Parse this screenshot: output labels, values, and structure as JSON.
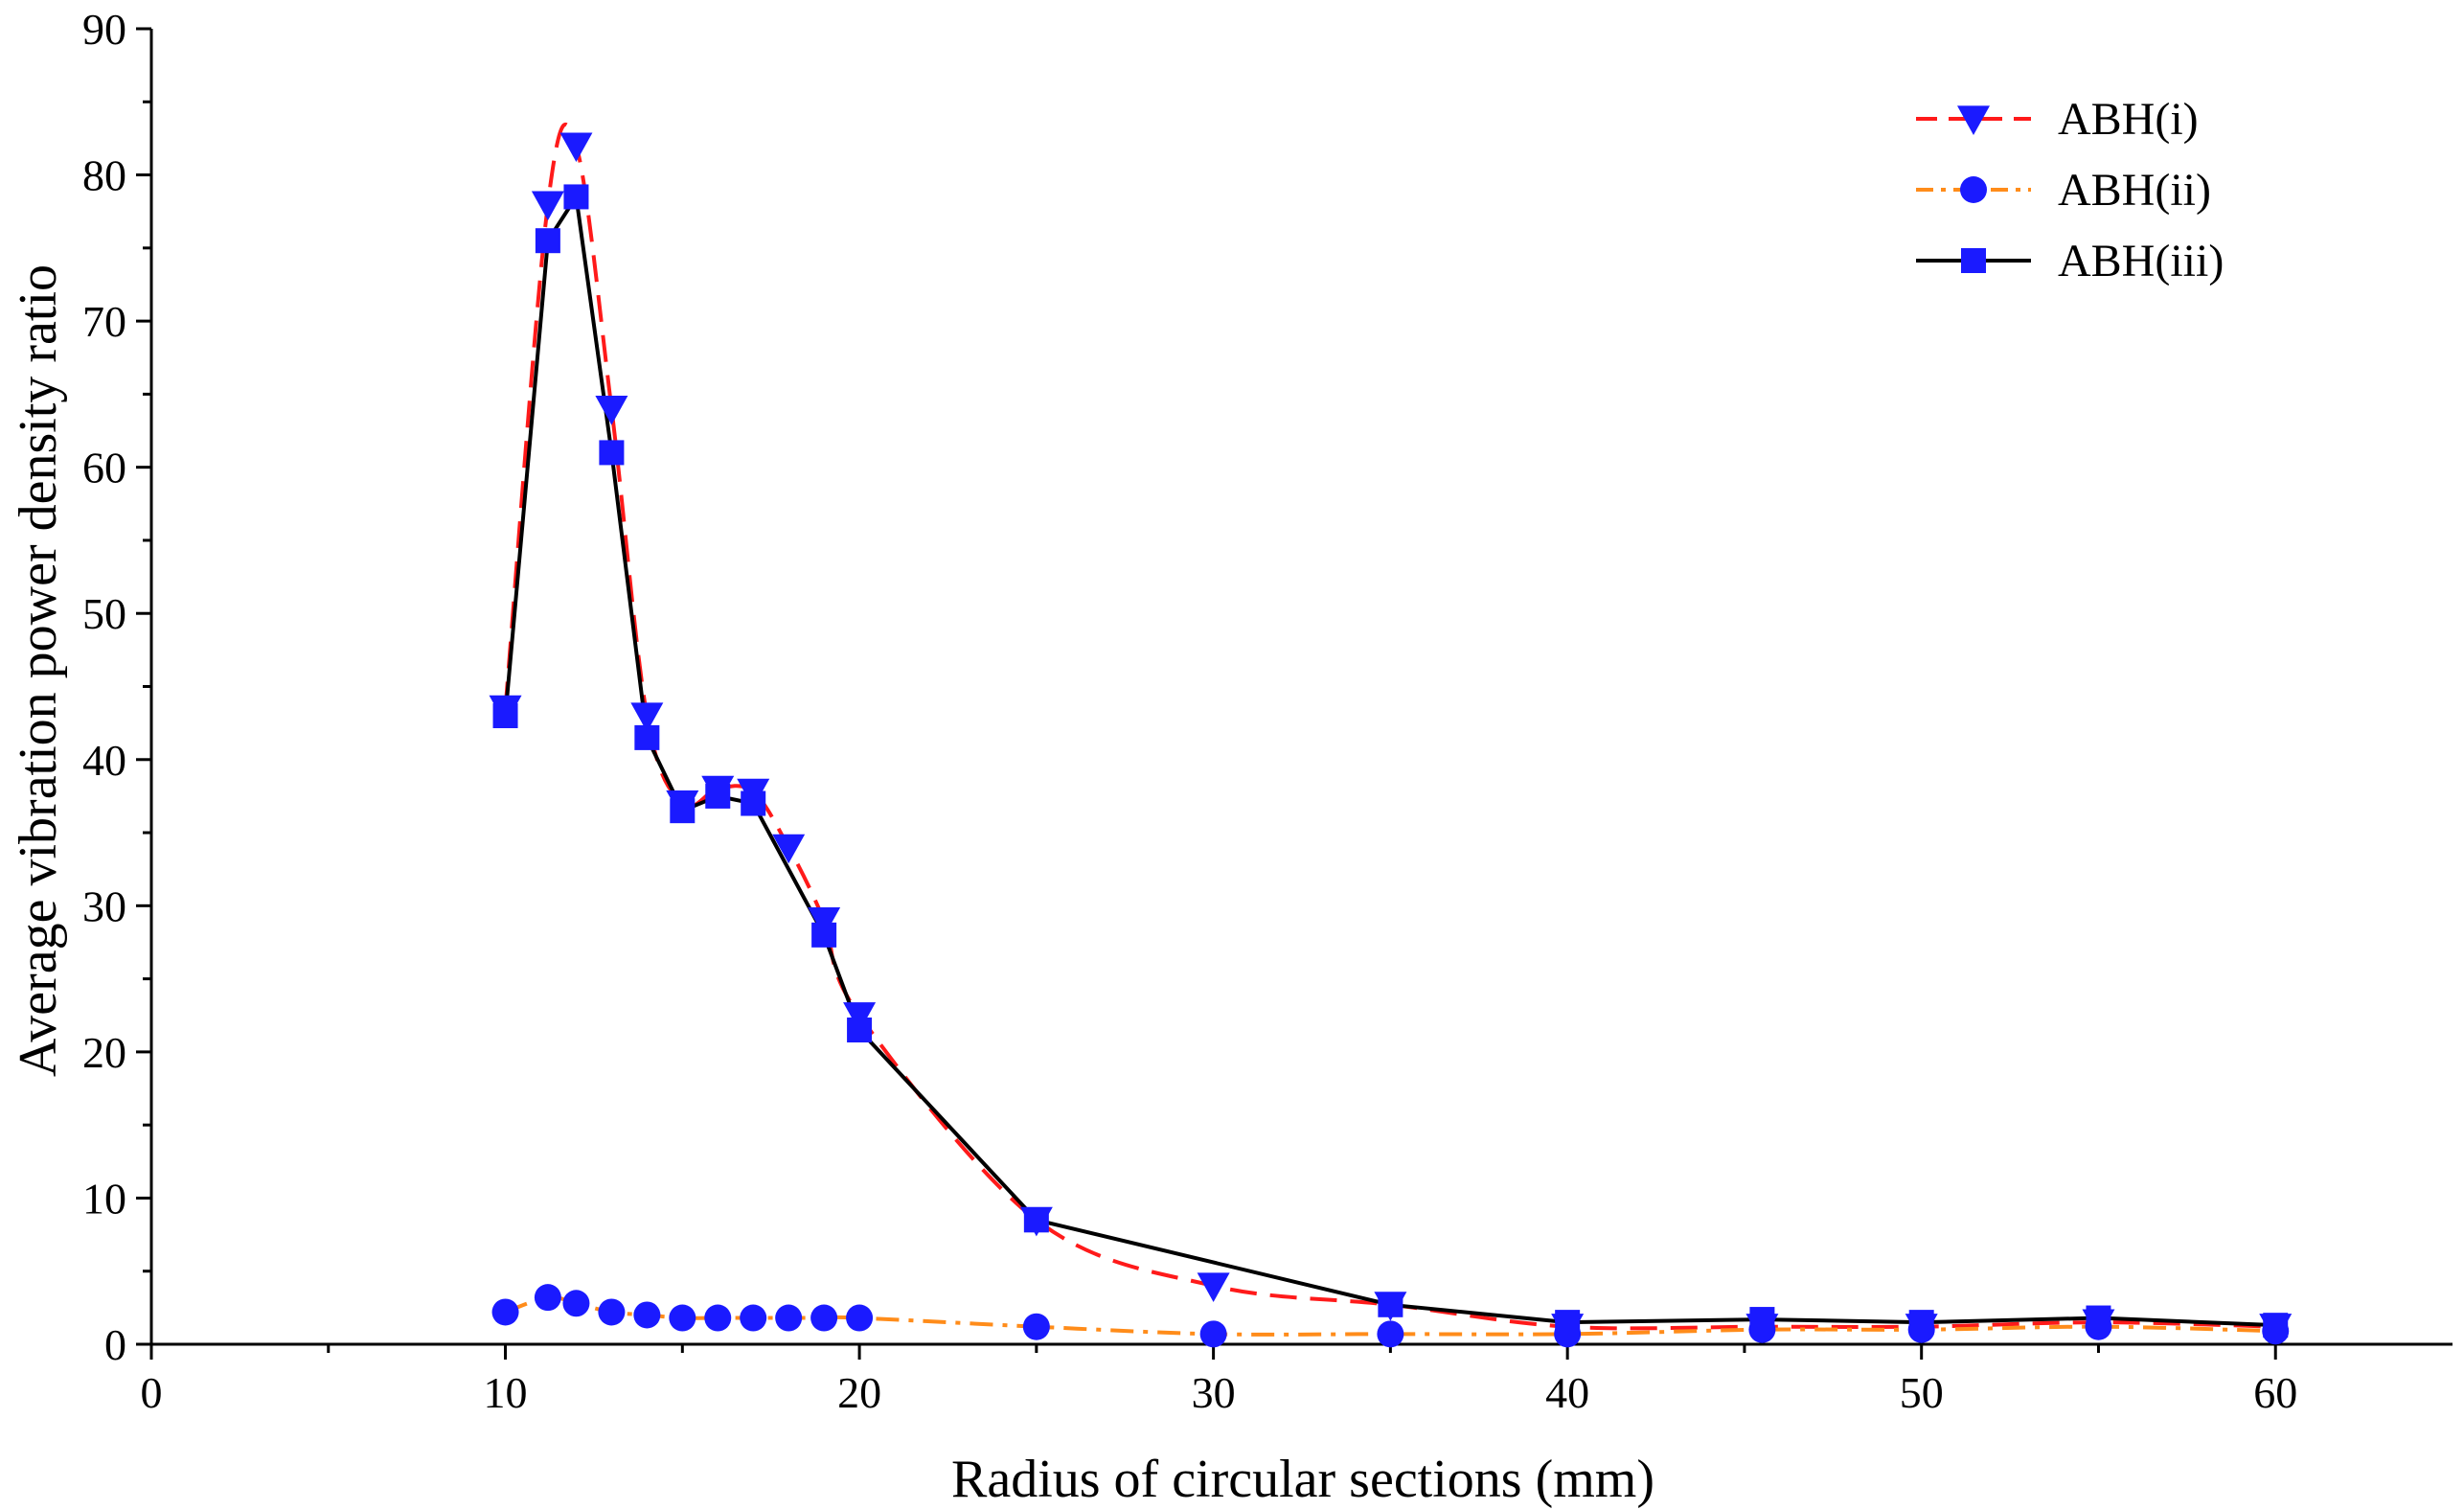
{
  "chart_data": {
    "type": "line",
    "title": "",
    "xlabel": "Radius of circular sections (mm)",
    "ylabel": "Average vibration power density ratio",
    "xlim": [
      0,
      65
    ],
    "ylim": [
      0,
      90
    ],
    "x_ticks": [
      0,
      10,
      20,
      30,
      40,
      50,
      60
    ],
    "y_ticks": [
      0,
      10,
      20,
      30,
      40,
      50,
      60,
      70,
      80,
      90
    ],
    "x_tick_labels": [
      "0",
      "10",
      "20",
      "30",
      "40",
      "50",
      "60"
    ],
    "y_tick_labels": [
      "0",
      "10",
      "20",
      "30",
      "40",
      "50",
      "60",
      "70",
      "80",
      "90"
    ],
    "grid": false,
    "legend_position": "top-right",
    "series": [
      {
        "name": "ABH(i)",
        "line_color": "#ff1a1a",
        "line_style": "dashed",
        "smooth": true,
        "marker": "triangle-down",
        "marker_color": "#1a1aff",
        "x": [
          10,
          11.2,
          12,
          13,
          14,
          15,
          16,
          17,
          18,
          19,
          20,
          25,
          30,
          35,
          40,
          45.5,
          50,
          55,
          60
        ],
        "y": [
          43.5,
          78,
          82,
          64,
          43,
          37,
          38,
          37.8,
          34,
          29,
          22.5,
          8.5,
          4,
          2.7,
          1.2,
          1.2,
          1.2,
          1.5,
          1.2
        ]
      },
      {
        "name": "ABH(ii)",
        "line_color": "#ff8c1a",
        "line_style": "dashdot",
        "smooth": true,
        "marker": "circle",
        "marker_color": "#1a1aff",
        "x": [
          10,
          11.2,
          12,
          13,
          14,
          15,
          16,
          17,
          18,
          19,
          20,
          25,
          30,
          35,
          40,
          45.5,
          50,
          55,
          60
        ],
        "y": [
          2.2,
          3.2,
          2.8,
          2.2,
          2,
          1.8,
          1.8,
          1.8,
          1.8,
          1.8,
          1.8,
          1.2,
          0.7,
          0.7,
          0.7,
          1,
          1,
          1.2,
          0.9
        ]
      },
      {
        "name": "ABH(iii)",
        "line_color": "#000000",
        "line_style": "solid",
        "smooth": false,
        "marker": "square",
        "marker_color": "#1a1aff",
        "x": [
          10,
          11.2,
          12,
          13,
          14,
          15,
          16,
          17,
          19,
          20,
          25,
          35,
          40,
          45.5,
          50,
          55,
          60
        ],
        "y": [
          43,
          75.5,
          78.5,
          61,
          41.5,
          36.5,
          37.5,
          37,
          28,
          21.5,
          8.5,
          2.7,
          1.5,
          1.7,
          1.5,
          1.8,
          1.3
        ]
      }
    ]
  }
}
